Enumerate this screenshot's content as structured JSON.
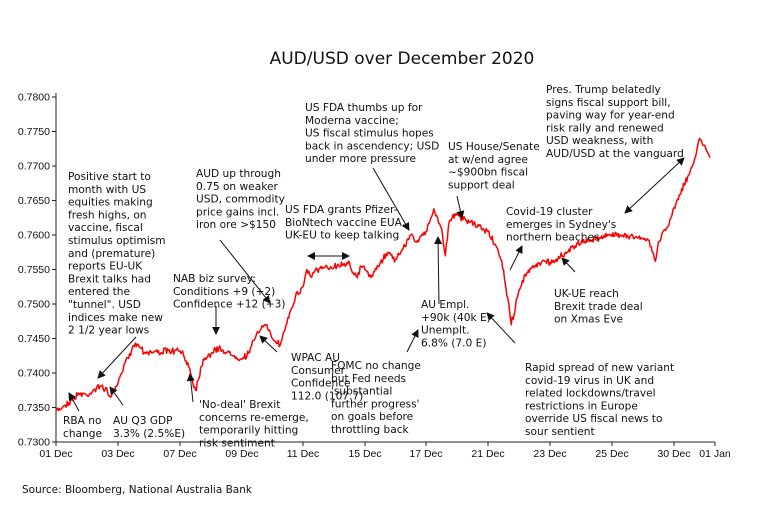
{
  "chart_data": {
    "type": "line",
    "title": "AUD/USD over December 2020",
    "xlabel": "",
    "ylabel": "",
    "source": "Source: Bloomberg, National Australia Bank",
    "ylim": [
      0.73,
      0.78
    ],
    "y_ticks": [
      "0.7300",
      "0.7350",
      "0.7400",
      "0.7450",
      "0.7500",
      "0.7550",
      "0.7600",
      "0.7650",
      "0.7700",
      "0.7750",
      "0.7800"
    ],
    "x_ticks": [
      {
        "label": "01 Dec",
        "day": 1
      },
      {
        "label": "03 Dec",
        "day": 3
      },
      {
        "label": "07 Dec",
        "day": 7
      },
      {
        "label": "09 Dec",
        "day": 9
      },
      {
        "label": "11 Dec",
        "day": 11
      },
      {
        "label": "15 Dec",
        "day": 15
      },
      {
        "label": "17 Dec",
        "day": 17
      },
      {
        "label": "21 Dec",
        "day": 21
      },
      {
        "label": "23 Dec",
        "day": 23
      },
      {
        "label": "25 Dec",
        "day": 25
      },
      {
        "label": "30 Dec",
        "day": 30
      },
      {
        "label": "01 Jan",
        "day": 32
      }
    ],
    "color": "#ff0000",
    "x": [
      "01 Dec 00:00",
      "01 Dec 06:00",
      "01 Dec 12:00",
      "01 Dec 18:00",
      "02 Dec 00:00",
      "02 Dec 06:00",
      "02 Dec 12:00",
      "02 Dec 18:00",
      "03 Dec 00:00",
      "03 Dec 06:00",
      "03 Dec 12:00",
      "03 Dec 18:00",
      "04 Dec 00:00",
      "04 Dec 06:00",
      "04 Dec 12:00",
      "04 Dec 18:00",
      "07 Dec 00:00",
      "07 Dec 06:00",
      "07 Dec 12:00",
      "07 Dec 18:00",
      "08 Dec 00:00",
      "08 Dec 06:00",
      "08 Dec 12:00",
      "08 Dec 18:00",
      "09 Dec 00:00",
      "09 Dec 06:00",
      "09 Dec 12:00",
      "09 Dec 18:00",
      "10 Dec 00:00",
      "10 Dec 06:00",
      "10 Dec 12:00",
      "10 Dec 18:00",
      "11 Dec 00:00",
      "11 Dec 06:00",
      "11 Dec 12:00",
      "11 Dec 18:00",
      "14 Dec 00:00",
      "14 Dec 06:00",
      "14 Dec 12:00",
      "14 Dec 18:00",
      "15 Dec 00:00",
      "15 Dec 06:00",
      "15 Dec 12:00",
      "15 Dec 18:00",
      "16 Dec 00:00",
      "16 Dec 06:00",
      "16 Dec 12:00",
      "16 Dec 18:00",
      "17 Dec 00:00",
      "17 Dec 06:00",
      "17 Dec 12:00",
      "17 Dec 18:00",
      "18 Dec 00:00",
      "18 Dec 06:00",
      "18 Dec 12:00",
      "18 Dec 18:00",
      "21 Dec 00:00",
      "21 Dec 06:00",
      "21 Dec 12:00",
      "21 Dec 18:00",
      "22 Dec 00:00",
      "22 Dec 06:00",
      "22 Dec 12:00",
      "22 Dec 18:00",
      "23 Dec 00:00",
      "23 Dec 06:00",
      "23 Dec 12:00",
      "23 Dec 18:00",
      "24 Dec 00:00",
      "24 Dec 06:00",
      "24 Dec 12:00",
      "24 Dec 18:00",
      "25 Dec 00:00",
      "25 Dec 12:00",
      "28 Dec 00:00",
      "28 Dec 06:00",
      "28 Dec 12:00",
      "28 Dec 18:00",
      "29 Dec 00:00",
      "29 Dec 06:00",
      "29 Dec 12:00",
      "29 Dec 18:00",
      "30 Dec 00:00",
      "30 Dec 06:00",
      "30 Dec 12:00",
      "30 Dec 18:00",
      "31 Dec 00:00",
      "31 Dec 06:00",
      "31 Dec 12:00",
      "31 Dec 18:00"
    ],
    "series": [
      {
        "values": [
          0.7345,
          0.7352,
          0.7361,
          0.737,
          0.7368,
          0.7376,
          0.7382,
          0.7365,
          0.7385,
          0.74,
          0.7418,
          0.7428,
          0.744,
          0.7442,
          0.7436,
          0.743,
          0.7432,
          0.7415,
          0.7375,
          0.742,
          0.7428,
          0.7436,
          0.743,
          0.7425,
          0.742,
          0.743,
          0.746,
          0.747,
          0.745,
          0.744,
          0.748,
          0.751,
          0.7525,
          0.755,
          0.754,
          0.7548,
          0.756,
          0.7545,
          0.7538,
          0.7555,
          0.755,
          0.754,
          0.756,
          0.7575,
          0.7565,
          0.758,
          0.76,
          0.759,
          0.7605,
          0.762,
          0.7638,
          0.7625,
          0.761,
          0.757,
          0.762,
          0.763,
          0.7605,
          0.7585,
          0.755,
          0.747,
          0.752,
          0.7545,
          0.7555,
          0.7562,
          0.756,
          0.7565,
          0.7575,
          0.7583,
          0.7588,
          0.7592,
          0.7595,
          0.76,
          0.7598,
          0.7602,
          0.7592,
          0.7575,
          0.7562,
          0.759,
          0.76,
          0.7608,
          0.7612,
          0.7625,
          0.764,
          0.7658,
          0.7672,
          0.7688,
          0.771,
          0.774,
          0.773,
          0.7712
        ]
      }
    ],
    "annotations": [
      {
        "lines": [
          "AUD up through",
          "0.75 on weaker",
          "USD, commodity",
          "price gains incl.",
          "iron ore >$150"
        ]
      },
      {
        "lines": [
          "US FDA thumbs up for",
          "Moderna vaccine;",
          "US fiscal stimulus hopes",
          "back in ascendency; USD",
          "under more pressure"
        ]
      },
      {
        "lines": [
          "US House/Senate",
          "at w/end agree",
          "~$900bn fiscal",
          "support deal"
        ]
      },
      {
        "lines": [
          "Pres. Trump belatedly",
          "signs fiscal support bill,",
          "paving way for year-end",
          "risk rally and renewed",
          "USD weakness, with",
          "AUD/USD at the vanguard"
        ]
      },
      {
        "lines": [
          "Positive start to",
          "month with US",
          "equities making",
          "fresh highs, on",
          "vaccine, fiscal",
          "stimulus optimism",
          "and (premature)",
          "reports EU-UK",
          "Brexit talks had",
          "entered the",
          "\"tunnel\". USD",
          "indices make new",
          "2 1/2 year lows"
        ]
      },
      {
        "lines": [
          "US FDA grants Pfizer-",
          "BioNtech vaccine EUA;",
          "UK-EU to keep talking"
        ]
      },
      {
        "lines": [
          "Covid-19 cluster",
          "emerges in Sydney's",
          "northern beaches"
        ]
      },
      {
        "lines": [
          "NAB biz survey:",
          "Conditions +9 (+2)",
          "Confidence +12 (+3)"
        ]
      },
      {
        "lines": [
          "WPAC AU",
          "Consumer",
          "Confidence",
          "112.0 (107.7)"
        ]
      },
      {
        "lines": [
          "AU Empl.",
          "+90k (40k E)",
          "Unemplt.",
          "6.8% (7.0 E)"
        ]
      },
      {
        "lines": [
          "FOMC no change",
          "but Fed needs",
          "'substantial",
          "further progress'",
          "on goals before",
          "throttling back"
        ]
      },
      {
        "lines": [
          "UK-UE reach",
          "Brexit trade deal",
          "on Xmas Eve"
        ]
      },
      {
        "lines": [
          "Rapid spread of new variant",
          "covid-19 virus in UK and",
          "related lockdowns/travel",
          "restrictions in Europe",
          "override US fiscal news to",
          "sour sentient"
        ]
      },
      {
        "lines": [
          "'No-deal' Brexit",
          "concerns re-emerge,",
          "temporarily hitting",
          "risk sentiment"
        ]
      },
      {
        "lines": [
          "RBA no",
          "change"
        ]
      },
      {
        "lines": [
          "AU Q3 GDP",
          "3.3% (2.5%E)"
        ]
      }
    ]
  }
}
